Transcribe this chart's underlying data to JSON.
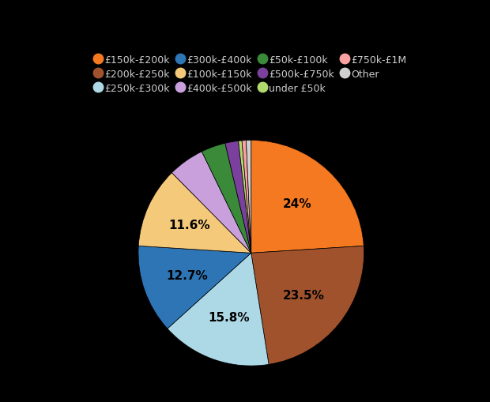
{
  "labels": [
    "£150k-£200k",
    "£200k-£250k",
    "£250k-£300k",
    "£300k-£400k",
    "£100k-£150k",
    "£400k-£500k",
    "£50k-£100k",
    "£500k-£750k",
    "under £50k",
    "£750k-£1M",
    "Other"
  ],
  "values": [
    24.0,
    23.5,
    15.8,
    12.7,
    11.6,
    5.2,
    3.5,
    1.9,
    0.5,
    0.6,
    0.7
  ],
  "colors": [
    "#f47920",
    "#a0522d",
    "#add8e6",
    "#2e75b6",
    "#f5c97a",
    "#c9a0dc",
    "#3a8a3a",
    "#7b3f9e",
    "#b2d96e",
    "#f9a0a0",
    "#d0d0d0"
  ],
  "show_labels": [
    true,
    true,
    true,
    true,
    true,
    false,
    false,
    false,
    false,
    false,
    false
  ],
  "label_texts": [
    "24%",
    "23.5%",
    "15.8%",
    "12.7%",
    "11.6%",
    "",
    "",
    "",
    "",
    "",
    ""
  ],
  "background_color": "#000000",
  "text_color": "#000000",
  "legend_text_color": "#cccccc",
  "startangle": 90
}
